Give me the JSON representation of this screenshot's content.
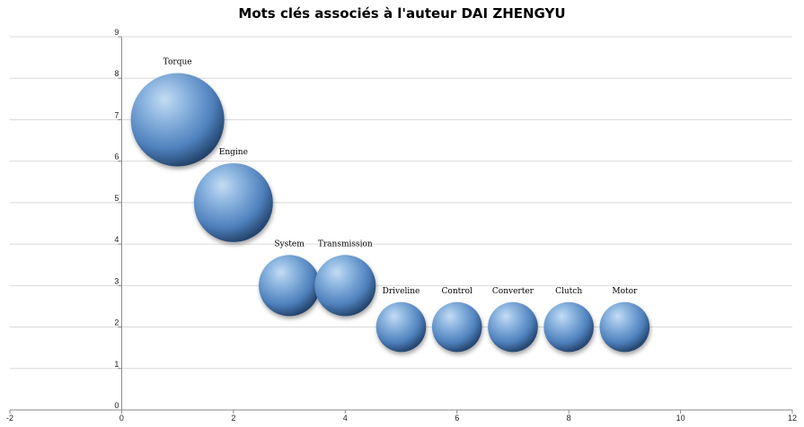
{
  "chart_data": {
    "type": "bubble",
    "title": "Mots clés associés à l'auteur DAI ZHENGYU",
    "xlabel": "",
    "ylabel": "",
    "xlim": [
      -2,
      12
    ],
    "ylim": [
      0,
      9
    ],
    "x_ticks": [
      -2,
      0,
      2,
      4,
      6,
      8,
      10,
      12
    ],
    "y_ticks": [
      0,
      1,
      2,
      3,
      4,
      5,
      6,
      7,
      8,
      9
    ],
    "grid": "horizontal",
    "legend": "none",
    "bubble_color": "#4f81bd",
    "points": [
      {
        "label": "Torque",
        "x": 1,
        "y": 7,
        "size": 7
      },
      {
        "label": "Engine",
        "x": 2,
        "y": 5,
        "size": 5
      },
      {
        "label": "System",
        "x": 3,
        "y": 3,
        "size": 3
      },
      {
        "label": "Transmission",
        "x": 4,
        "y": 3,
        "size": 3
      },
      {
        "label": "Driveline",
        "x": 5,
        "y": 2,
        "size": 2
      },
      {
        "label": "Control",
        "x": 6,
        "y": 2,
        "size": 2
      },
      {
        "label": "Converter",
        "x": 7,
        "y": 2,
        "size": 2
      },
      {
        "label": "Clutch",
        "x": 8,
        "y": 2,
        "size": 2
      },
      {
        "label": "Motor",
        "x": 9,
        "y": 2,
        "size": 2
      }
    ]
  }
}
